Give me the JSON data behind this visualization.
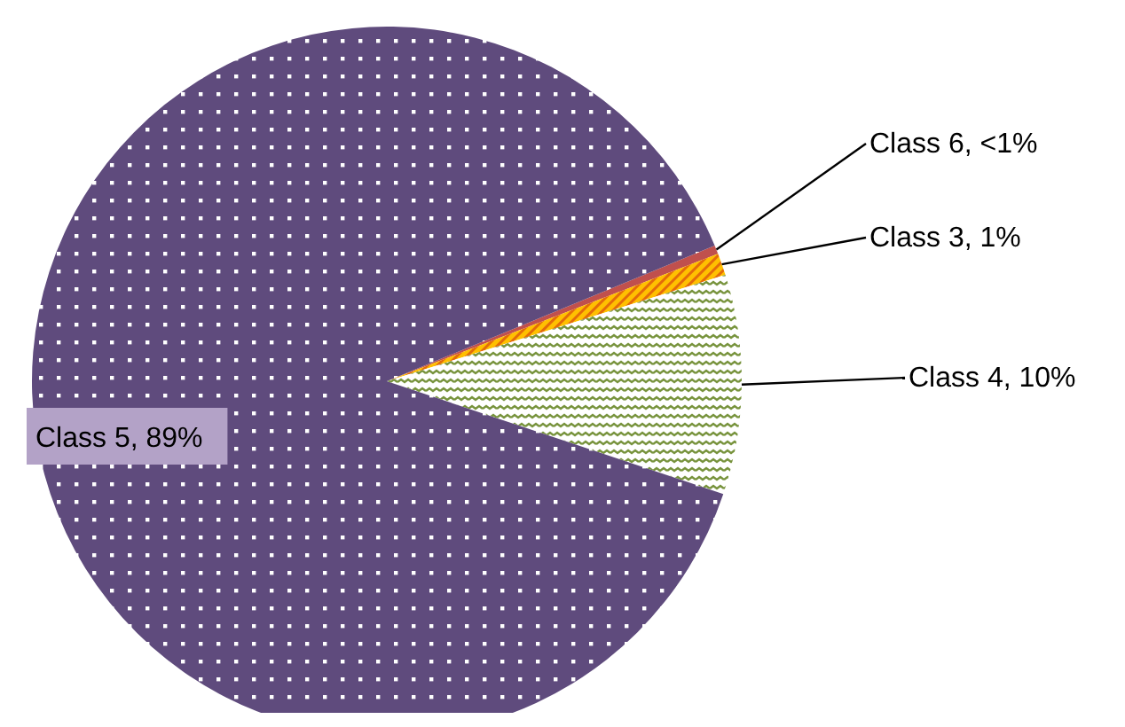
{
  "chart_data": {
    "type": "pie",
    "categories": [
      "Class 6",
      "Class 3",
      "Class 4",
      "Class 5"
    ],
    "values": [
      0.4,
      1,
      10,
      88.6
    ],
    "value_labels": [
      "<1%",
      "1%",
      "10%",
      "89%"
    ],
    "colors": [
      "#c0504d",
      "#ffc000",
      "#77933c",
      "#5f4b7d"
    ]
  }
}
